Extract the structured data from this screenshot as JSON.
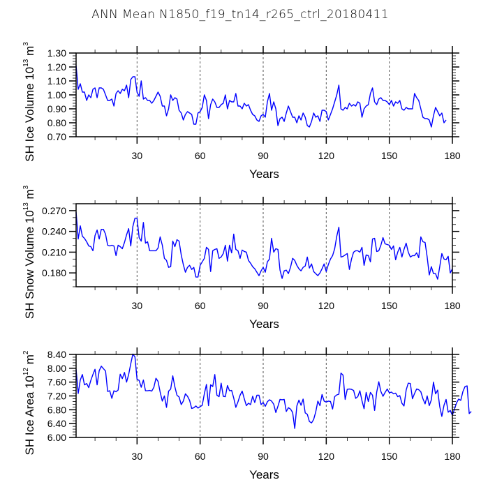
{
  "chart_data": [
    {
      "type": "line",
      "title": "ANN Mean N1850_f19_tn14_r265_ctrl_20180411",
      "ylabel": "SH Ice Volume 10^13 m^3",
      "ylabel_parts": {
        "text": "SH Ice Volume 10",
        "exp": "13",
        "unit": " m",
        "unit_exp": "3"
      },
      "xlabel": "Years",
      "xlim": [
        1,
        180
      ],
      "ylim": [
        0.7,
        1.3
      ],
      "xticks": [
        30,
        60,
        90,
        120,
        150,
        180
      ],
      "yticks": [
        0.7,
        0.8,
        0.9,
        1.0,
        1.1,
        1.2,
        1.3
      ],
      "ytick_labels": [
        "0.70",
        "0.80",
        "0.90",
        "1.00",
        "1.10",
        "1.20",
        "1.30"
      ],
      "grid": "dashed vertical at x ticks",
      "color": "#0000ff",
      "series": [
        {
          "name": "SH Ice Volume",
          "values": [
            1.21,
            1.04,
            1.08,
            1.02,
            1.02,
            0.96,
            1.0,
            0.98,
            1.04,
            1.05,
            0.98,
            1.05,
            1.05,
            1.04,
            1.0,
            0.96,
            0.96,
            0.97,
            0.92,
            1.01,
            1.03,
            1.01,
            1.04,
            1.03,
            1.07,
            0.98,
            1.11,
            1.13,
            1.13,
            1.02,
            0.99,
            1.1,
            0.97,
            0.98,
            0.96,
            0.96,
            0.94,
            0.96,
            0.99,
            1.02,
            0.99,
            0.92,
            0.92,
            0.85,
            0.9,
            1.0,
            0.96,
            0.98,
            0.97,
            0.89,
            0.87,
            0.82,
            0.86,
            0.88,
            0.87,
            0.86,
            0.79,
            0.79,
            0.87,
            0.88,
            0.91,
            1.0,
            0.96,
            0.83,
            0.93,
            0.97,
            0.95,
            0.91,
            0.91,
            0.93,
            0.94,
            1.0,
            0.9,
            0.96,
            0.95,
            0.95,
            1.01,
            0.92,
            0.92,
            0.9,
            0.94,
            0.92,
            0.93,
            0.89,
            0.86,
            0.85,
            0.82,
            0.81,
            0.85,
            0.86,
            0.84,
            0.95,
            1.01,
            0.89,
            0.95,
            0.9,
            0.78,
            0.83,
            0.84,
            0.81,
            0.87,
            0.92,
            0.88,
            0.84,
            0.84,
            0.8,
            0.85,
            0.82,
            0.87,
            0.84,
            0.78,
            0.77,
            0.81,
            0.87,
            0.84,
            0.85,
            0.81,
            0.89,
            0.89,
            0.88,
            0.82,
            0.86,
            0.9,
            0.95,
            1.0,
            1.07,
            0.9,
            0.89,
            0.91,
            0.9,
            0.94,
            0.92,
            0.93,
            0.92,
            0.95,
            0.94,
            0.84,
            0.9,
            0.92,
            0.93,
            1.01,
            1.05,
            0.95,
            0.93,
            0.97,
            0.98,
            0.96,
            0.96,
            0.95,
            0.93,
            0.96,
            0.92,
            0.95,
            0.94,
            0.96,
            0.9,
            0.89,
            0.91,
            0.9,
            0.9,
            0.9,
            1.01,
            0.98,
            0.96,
            0.9,
            0.84,
            0.83,
            0.83,
            0.82,
            0.77,
            0.85,
            0.91,
            0.88,
            0.85,
            0.87,
            0.8,
            0.82
          ]
        }
      ]
    },
    {
      "type": "line",
      "ylabel": "SH Snow Volume 10^13 m^3",
      "ylabel_parts": {
        "text": "SH Snow Volume 10",
        "exp": "13",
        "unit": " m",
        "unit_exp": "3"
      },
      "xlabel": "Years",
      "xlim": [
        1,
        180
      ],
      "ylim": [
        0.16,
        0.28
      ],
      "xticks": [
        30,
        60,
        90,
        120,
        150,
        180
      ],
      "yticks": [
        0.18,
        0.21,
        0.24,
        0.27
      ],
      "ytick_labels": [
        "0.180",
        "0.210",
        "0.240",
        "0.270"
      ],
      "grid": "dashed vertical at x ticks",
      "color": "#0000ff",
      "series": [
        {
          "name": "SH Snow Volume",
          "values": [
            0.268,
            0.229,
            0.248,
            0.233,
            0.23,
            0.225,
            0.219,
            0.218,
            0.212,
            0.234,
            0.242,
            0.229,
            0.243,
            0.243,
            0.236,
            0.22,
            0.219,
            0.22,
            0.219,
            0.205,
            0.22,
            0.218,
            0.215,
            0.224,
            0.235,
            0.244,
            0.219,
            0.247,
            0.259,
            0.259,
            0.231,
            0.226,
            0.253,
            0.223,
            0.225,
            0.212,
            0.212,
            0.212,
            0.212,
            0.216,
            0.232,
            0.22,
            0.201,
            0.198,
            0.188,
            0.189,
            0.226,
            0.218,
            0.228,
            0.226,
            0.206,
            0.192,
            0.181,
            0.188,
            0.191,
            0.185,
            0.188,
            0.174,
            0.174,
            0.191,
            0.196,
            0.201,
            0.217,
            0.214,
            0.182,
            0.212,
            0.214,
            0.215,
            0.201,
            0.203,
            0.208,
            0.22,
            0.197,
            0.22,
            0.209,
            0.236,
            0.214,
            0.212,
            0.201,
            0.213,
            0.211,
            0.21,
            0.198,
            0.194,
            0.189,
            0.186,
            0.181,
            0.176,
            0.183,
            0.188,
            0.181,
            0.196,
            0.2,
            0.23,
            0.21,
            0.215,
            0.214,
            0.184,
            0.172,
            0.183,
            0.184,
            0.179,
            0.188,
            0.201,
            0.198,
            0.191,
            0.186,
            0.183,
            0.188,
            0.19,
            0.203,
            0.187,
            0.193,
            0.182,
            0.179,
            0.176,
            0.18,
            0.186,
            0.193,
            0.182,
            0.192,
            0.2,
            0.205,
            0.215,
            0.233,
            0.246,
            0.203,
            0.204,
            0.206,
            0.208,
            0.185,
            0.2,
            0.21,
            0.212,
            0.212,
            0.21,
            0.217,
            0.191,
            0.206,
            0.205,
            0.196,
            0.229,
            0.23,
            0.211,
            0.212,
            0.22,
            0.231,
            0.222,
            0.221,
            0.22,
            0.214,
            0.219,
            0.199,
            0.21,
            0.217,
            0.203,
            0.214,
            0.223,
            0.21,
            0.203,
            0.205,
            0.205,
            0.209,
            0.202,
            0.232,
            0.225,
            0.224,
            0.203,
            0.177,
            0.189,
            0.179,
            0.179,
            0.171,
            0.189,
            0.208,
            0.2,
            0.199,
            0.204,
            0.18,
            0.186
          ]
        }
      ]
    },
    {
      "type": "line",
      "ylabel": "SH Ice Area 10^12 m^2",
      "ylabel_parts": {
        "text": "SH Ice Area 10",
        "exp": "12",
        "unit": " m",
        "unit_exp": "2"
      },
      "xlabel": "Years",
      "xlim": [
        1,
        180
      ],
      "ylim": [
        6.0,
        8.4
      ],
      "xticks": [
        30,
        60,
        90,
        120,
        150,
        180
      ],
      "yticks": [
        6.0,
        6.4,
        6.8,
        7.2,
        7.6,
        8.0,
        8.4
      ],
      "ytick_labels": [
        "6.00",
        "6.40",
        "6.80",
        "7.20",
        "7.60",
        "8.00",
        "8.40"
      ],
      "grid": "dashed vertical at x ticks",
      "color": "#0000ff",
      "series": [
        {
          "name": "SH Ice Area",
          "values": [
            7.97,
            7.27,
            7.66,
            7.82,
            7.52,
            7.56,
            7.44,
            7.65,
            7.82,
            7.97,
            7.52,
            7.93,
            8.06,
            7.99,
            7.92,
            7.33,
            7.35,
            7.13,
            7.35,
            7.32,
            7.37,
            7.83,
            7.7,
            7.88,
            7.6,
            7.82,
            8.13,
            8.41,
            8.33,
            7.68,
            7.65,
            7.45,
            7.66,
            7.35,
            7.35,
            7.36,
            7.34,
            7.45,
            7.71,
            7.62,
            7.31,
            7.05,
            7.2,
            6.87,
            7.34,
            7.4,
            7.78,
            7.46,
            7.22,
            7.17,
            6.95,
            7.05,
            7.26,
            7.19,
            7.07,
            6.84,
            6.86,
            6.91,
            6.85,
            6.89,
            6.93,
            7.26,
            7.53,
            6.92,
            7.52,
            7.47,
            7.82,
            7.22,
            7.18,
            7.57,
            7.19,
            7.18,
            7.5,
            7.35,
            7.36,
            7.14,
            6.87,
            7.03,
            7.22,
            7.34,
            7.12,
            6.92,
            6.99,
            6.95,
            7.19,
            7.01,
            7.22,
            7.22,
            6.95,
            7.01,
            6.9,
            7.03,
            7.09,
            7.05,
            6.96,
            6.72,
            6.9,
            7.1,
            7.09,
            7.1,
            6.75,
            6.86,
            6.82,
            6.72,
            6.26,
            6.91,
            7.08,
            6.93,
            7.11,
            6.71,
            6.67,
            6.46,
            6.42,
            6.52,
            6.74,
            7.05,
            6.92,
            7.24,
            7.05,
            7.02,
            7.05,
            7.04,
            6.82,
            7.18,
            7.23,
            7.25,
            7.86,
            7.8,
            7.1,
            7.39,
            7.4,
            7.39,
            7.36,
            7.13,
            7.18,
            7.35,
            7.06,
            6.83,
            7.3,
            7.04,
            7.3,
            7.22,
            6.78,
            7.31,
            7.61,
            7.33,
            7.19,
            7.3,
            7.4,
            7.29,
            7.31,
            7.26,
            7.28,
            7.18,
            7.21,
            6.99,
            6.91,
            7.37,
            7.57,
            7.56,
            7.12,
            7.27,
            7.4,
            7.38,
            7.32,
            7.12,
            6.97,
            7.2,
            6.92,
            7.09,
            7.6,
            7.26,
            7.37,
            6.89,
            6.61,
            6.93,
            7.1,
            6.73,
            6.78,
            6.64,
            6.82,
            7.0,
            7.11,
            7.07,
            7.33,
            7.47,
            7.49,
            6.69,
            6.75
          ]
        }
      ]
    }
  ]
}
